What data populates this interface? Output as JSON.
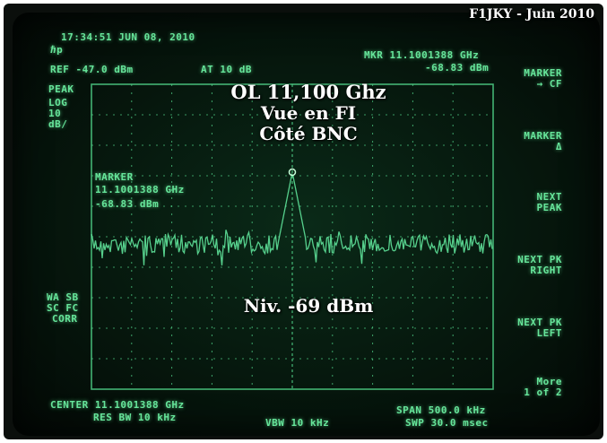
{
  "credit": "F1JKY - Juin 2010",
  "analyzer": {
    "datetime": "17:34:51 JUN 08, 2010",
    "ref": "REF -47.0 dBm",
    "atten": "AT 10 dB",
    "mkr_freq": "MKR 11.1001388 GHz",
    "mkr_level": "-68.83 dBm",
    "left_labels": [
      "PEAK",
      "LOG",
      "10",
      "dB/"
    ],
    "marker_label": "MARKER",
    "marker_freq": "11.1001388 GHz",
    "marker_level": "-68.83 dBm",
    "bottom_left_labels": [
      "WA SB",
      "SC FC",
      "CORR"
    ],
    "center": "CENTER 11.1001388 GHz",
    "res_bw": "RES BW 10 kHz",
    "vbw": "VBW 10 kHz",
    "span": "SPAN 500.0 kHz",
    "swp": "SWP 30.0 msec"
  },
  "softkeys": [
    {
      "line1": "MARKER",
      "line2": "→ CF"
    },
    {
      "line1": "MARKER",
      "line2": "Δ"
    },
    {
      "line1": "NEXT",
      "line2": "PEAK"
    },
    {
      "line1": "NEXT PK",
      "line2": "RIGHT"
    },
    {
      "line1": "NEXT PK",
      "line2": "LEFT"
    },
    {
      "line1": "More",
      "line2": "1 of 2"
    }
  ],
  "overlay": {
    "line1": "OL 11,100 Ghz",
    "line2": "Vue en FI",
    "line3": "Côté BNC",
    "level": "Niv. -69 dBm"
  },
  "colors": {
    "trace": "#5fe39a",
    "grid": "#4fcf86",
    "screen_bg": "#06170d"
  }
}
